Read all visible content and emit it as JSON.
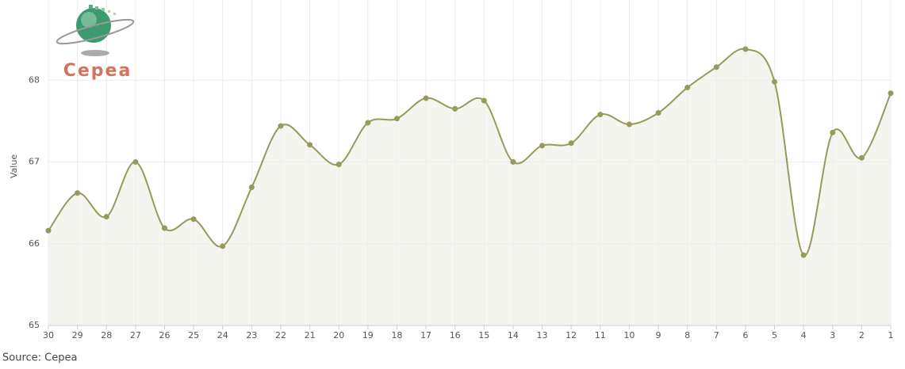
{
  "chart_data": {
    "type": "line",
    "logo": "Cepea",
    "y_label": "Value",
    "source": "Source: Cepea",
    "categories": [
      "30",
      "29",
      "28",
      "27",
      "26",
      "25",
      "24",
      "23",
      "22",
      "21",
      "20",
      "19",
      "18",
      "17",
      "16",
      "15",
      "14",
      "13",
      "12",
      "11",
      "10",
      "9",
      "8",
      "7",
      "6",
      "5",
      "4",
      "3",
      "2",
      "1"
    ],
    "series": [
      {
        "name": "Value",
        "color": "#979a5b",
        "values": [
          66.16,
          66.62,
          66.33,
          67.0,
          66.19,
          66.3,
          65.97,
          66.69,
          67.44,
          67.21,
          66.97,
          67.48,
          67.53,
          67.78,
          67.65,
          67.75,
          67.0,
          67.2,
          67.23,
          67.58,
          67.46,
          67.6,
          67.91,
          68.16,
          68.38,
          67.98,
          65.86,
          67.36,
          67.05,
          67.84
        ]
      }
    ],
    "ylim": [
      65,
      69
    ],
    "yticks": [
      65,
      66,
      67,
      68
    ],
    "grid": true,
    "area_color": "#f5f5f0"
  }
}
